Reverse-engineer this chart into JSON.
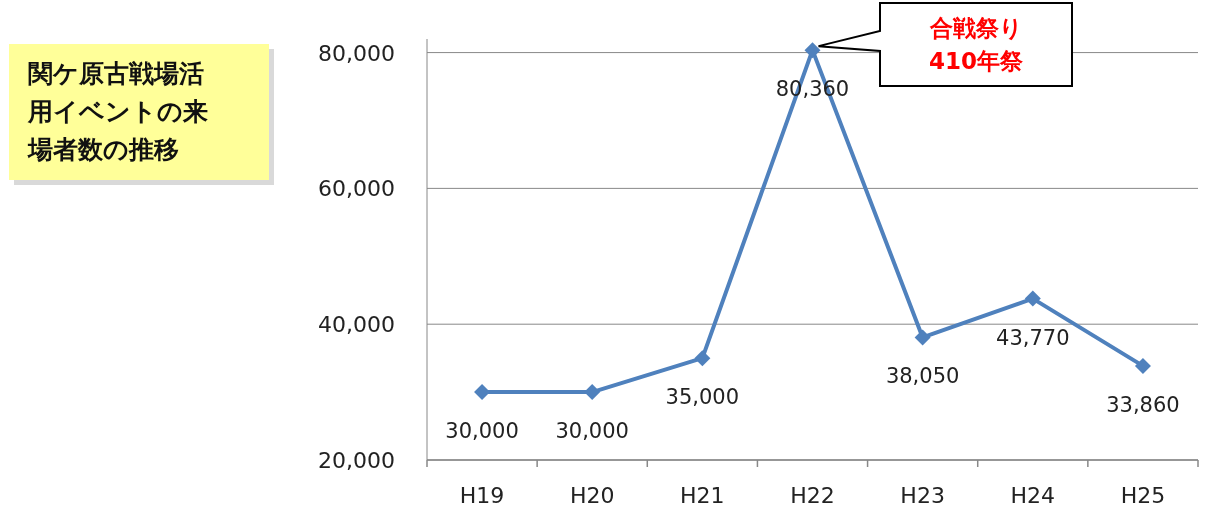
{
  "chart_data": {
    "type": "line",
    "title": "関ケ原古戦場活用イベントの来場者数の推移",
    "categories": [
      "H19",
      "H20",
      "H21",
      "H22",
      "H23",
      "H24",
      "H25"
    ],
    "series": [
      {
        "color": "#4f81bd",
        "values": [
          30000,
          30000,
          35000,
          80360,
          38050,
          43770,
          33860
        ],
        "value_labels": [
          "30,000",
          "30,000",
          "35,000",
          "80,360",
          "38,050",
          "43,770",
          "33,860"
        ]
      }
    ],
    "ylim": [
      20000,
      82000
    ],
    "yticks": [
      {
        "value": 20000,
        "label": "20,000"
      },
      {
        "value": 40000,
        "label": "40,000"
      },
      {
        "value": 60000,
        "label": "60,000"
      },
      {
        "value": 80000,
        "label": "80,000"
      }
    ],
    "grid": "y",
    "marker": "diamond",
    "line_style": "solid",
    "annotations": [
      "合戦祭り\n410年祭"
    ]
  }
}
